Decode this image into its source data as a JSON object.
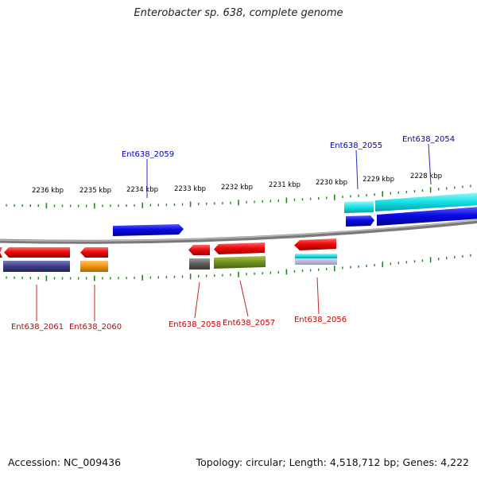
{
  "title": "Enterobacter sp. 638, complete genome",
  "footer": {
    "accession": "Accession: NC_009436",
    "stats": "Topology: circular; Length: 4,518,712 bp; Genes: 4,222"
  },
  "colors": {
    "backbone": "#808080",
    "ticks": "#1a8a1a",
    "tick_label": "#111111",
    "top_label": "#0000bb",
    "bottom_label": "#cc0000",
    "leader_top": "#2a2ad0",
    "leader_bottom": "#cc2222"
  },
  "scale": {
    "upper_labels": [
      "2236 kbp",
      "2235 kbp",
      "2234 kbp",
      "2233 kbp",
      "2232 kbp",
      "2231 kbp",
      "2230 kbp",
      "2229 kbp",
      "2228 kbp"
    ]
  },
  "genes_top": [
    {
      "label": "Ent638_2059",
      "color": "#0a0ae6",
      "strand": "+"
    },
    {
      "label": "Ent638_2055",
      "color": "#0a0ae6",
      "strand": "+"
    },
    {
      "label": "Ent638_2054",
      "color": "#0a0ae6",
      "strand": "+"
    }
  ],
  "genes_bottom": [
    {
      "label": "Ent638_2061",
      "color": "#ee0a0a",
      "strand": "-"
    },
    {
      "label": "Ent638_2060",
      "color": "#ee0a0a",
      "strand": "-"
    },
    {
      "label": "Ent638_2058",
      "color": "#ee0a0a",
      "strand": "-"
    },
    {
      "label": "Ent638_2057",
      "color": "#ee0a0a",
      "strand": "-"
    },
    {
      "label": "Ent638_2056",
      "color": "#ee0a0a",
      "strand": "-"
    }
  ],
  "feature_colors": {
    "cyan": "#12e2e8",
    "navy": "#3b3c84",
    "orange": "#f0920e",
    "olive": "#6f8f1e",
    "grey": "#5a5a5a"
  }
}
